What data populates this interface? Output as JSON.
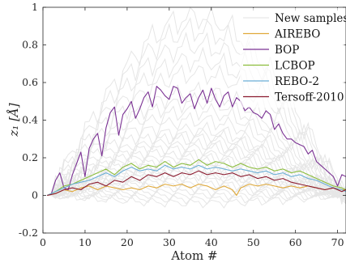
{
  "chart_data": {
    "type": "line",
    "title": "",
    "xlabel": "Atom #",
    "ylabel": "z₁ [Å]",
    "xlim": [
      0,
      72
    ],
    "ylim": [
      -0.2,
      1
    ],
    "xticks": [
      0,
      10,
      20,
      30,
      40,
      50,
      60,
      70
    ],
    "yticks": [
      -0.2,
      0,
      0.2,
      0.4,
      0.6,
      0.8,
      1
    ],
    "xtick_labels": [
      "0",
      "10",
      "20",
      "30",
      "40",
      "50",
      "60",
      "70"
    ],
    "ytick_labels": [
      "-0.2",
      "0",
      "0.2",
      "0.4",
      "0.6",
      "0.8",
      "1"
    ],
    "grid": false,
    "legend_position": "top-right",
    "background_samples": {
      "name": "New samples",
      "color": "#e6e6e6",
      "approx_peak_values": [
        0.95,
        0.88,
        0.8,
        0.72,
        0.65,
        0.55,
        0.5,
        0.45,
        0.4,
        0.35,
        0.32,
        0.3,
        0.27,
        0.25,
        0.22,
        0.2,
        0.18,
        0.16,
        0.14,
        0.12,
        0.1,
        0.08,
        0.06,
        0.04,
        0.02,
        0.0,
        -0.02,
        -0.04,
        0.15,
        0.11
      ]
    },
    "series": [
      {
        "name": "AIREBO",
        "color": "#e0a93a",
        "x": [
          1,
          3,
          5,
          7,
          9,
          11,
          13,
          15,
          17,
          19,
          21,
          23,
          25,
          27,
          29,
          31,
          33,
          35,
          37,
          39,
          41,
          43,
          45,
          46,
          47,
          49,
          51,
          53,
          55,
          57,
          59,
          61,
          63,
          65,
          67,
          69,
          71,
          72
        ],
        "y": [
          0.0,
          0.01,
          0.03,
          0.02,
          0.04,
          0.05,
          0.03,
          0.05,
          0.04,
          0.03,
          0.04,
          0.03,
          0.05,
          0.04,
          0.06,
          0.05,
          0.06,
          0.04,
          0.06,
          0.05,
          0.03,
          0.05,
          0.03,
          0.0,
          0.04,
          0.06,
          0.05,
          0.06,
          0.05,
          0.04,
          0.05,
          0.04,
          0.05,
          0.04,
          0.03,
          0.04,
          0.03,
          0.03
        ]
      },
      {
        "name": "BOP",
        "color": "#7b3294",
        "x": [
          1,
          2,
          3,
          4,
          5,
          6,
          7,
          8,
          9,
          10,
          11,
          12,
          13,
          14,
          15,
          16,
          17,
          18,
          19,
          20,
          21,
          22,
          23,
          24,
          25,
          26,
          27,
          28,
          29,
          30,
          31,
          32,
          33,
          34,
          35,
          36,
          37,
          38,
          39,
          40,
          41,
          42,
          43,
          44,
          45,
          46,
          47,
          48,
          49,
          50,
          51,
          52,
          53,
          54,
          55,
          56,
          57,
          58,
          59,
          60,
          61,
          62,
          63,
          64,
          65,
          66,
          67,
          68,
          69,
          70,
          71,
          72
        ],
        "y": [
          0.0,
          0.01,
          0.08,
          0.12,
          0.04,
          0.03,
          0.11,
          0.17,
          0.23,
          0.1,
          0.25,
          0.3,
          0.33,
          0.21,
          0.36,
          0.44,
          0.47,
          0.32,
          0.43,
          0.46,
          0.5,
          0.41,
          0.46,
          0.52,
          0.55,
          0.47,
          0.58,
          0.56,
          0.53,
          0.51,
          0.58,
          0.57,
          0.49,
          0.52,
          0.54,
          0.46,
          0.52,
          0.56,
          0.49,
          0.57,
          0.51,
          0.47,
          0.53,
          0.55,
          0.47,
          0.52,
          0.5,
          0.45,
          0.47,
          0.44,
          0.43,
          0.41,
          0.45,
          0.43,
          0.35,
          0.38,
          0.33,
          0.3,
          0.3,
          0.28,
          0.27,
          0.26,
          0.22,
          0.24,
          0.18,
          0.16,
          0.14,
          0.12,
          0.1,
          0.05,
          0.11,
          0.1
        ]
      },
      {
        "name": "LCBOP",
        "color": "#8bbd3b",
        "x": [
          1,
          3,
          5,
          7,
          9,
          11,
          13,
          15,
          17,
          19,
          21,
          23,
          25,
          27,
          29,
          31,
          33,
          35,
          37,
          39,
          41,
          43,
          45,
          47,
          49,
          51,
          53,
          55,
          57,
          59,
          61,
          63,
          65,
          67,
          69,
          71,
          72
        ],
        "y": [
          0.0,
          0.02,
          0.05,
          0.06,
          0.08,
          0.1,
          0.12,
          0.14,
          0.11,
          0.15,
          0.17,
          0.14,
          0.16,
          0.15,
          0.18,
          0.15,
          0.17,
          0.16,
          0.19,
          0.16,
          0.18,
          0.17,
          0.15,
          0.17,
          0.15,
          0.14,
          0.15,
          0.13,
          0.14,
          0.12,
          0.13,
          0.11,
          0.09,
          0.07,
          0.05,
          0.04,
          0.03
        ]
      },
      {
        "name": "REBO-2",
        "color": "#6aaed6",
        "x": [
          1,
          3,
          5,
          7,
          9,
          11,
          13,
          15,
          17,
          19,
          21,
          23,
          25,
          27,
          29,
          31,
          33,
          35,
          37,
          39,
          41,
          43,
          45,
          47,
          49,
          51,
          53,
          55,
          57,
          59,
          61,
          63,
          65,
          67,
          69,
          71,
          72
        ],
        "y": [
          0.0,
          0.02,
          0.04,
          0.06,
          0.07,
          0.08,
          0.1,
          0.12,
          0.1,
          0.13,
          0.15,
          0.13,
          0.14,
          0.13,
          0.16,
          0.14,
          0.15,
          0.14,
          0.16,
          0.14,
          0.15,
          0.14,
          0.13,
          0.14,
          0.13,
          0.12,
          0.13,
          0.11,
          0.12,
          0.1,
          0.11,
          0.09,
          0.08,
          0.06,
          0.04,
          0.03,
          0.02
        ]
      },
      {
        "name": "Tersoff-2010",
        "color": "#8b1a2e",
        "x": [
          1,
          3,
          5,
          7,
          9,
          11,
          13,
          15,
          17,
          19,
          21,
          23,
          25,
          27,
          29,
          31,
          33,
          35,
          37,
          39,
          41,
          43,
          45,
          47,
          49,
          51,
          53,
          55,
          57,
          59,
          61,
          63,
          65,
          67,
          69,
          71,
          72
        ],
        "y": [
          0.0,
          0.01,
          0.03,
          0.04,
          0.03,
          0.06,
          0.07,
          0.05,
          0.08,
          0.07,
          0.1,
          0.08,
          0.11,
          0.1,
          0.12,
          0.1,
          0.12,
          0.11,
          0.13,
          0.11,
          0.12,
          0.11,
          0.12,
          0.1,
          0.11,
          0.09,
          0.1,
          0.08,
          0.09,
          0.07,
          0.06,
          0.05,
          0.04,
          0.03,
          0.04,
          0.02,
          0.03
        ]
      }
    ]
  }
}
